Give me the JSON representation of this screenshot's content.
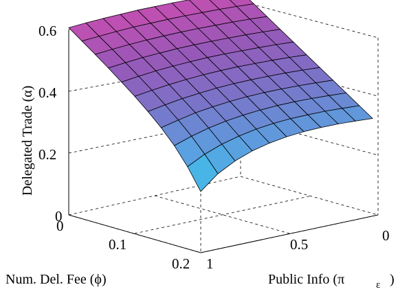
{
  "chart_data": {
    "type": "surface",
    "xlabel": "Num. Del. Fee (ϕ)",
    "ylabel": "Public Info (π",
    "ylabel_sub": "ε",
    "ylabel_close": ")",
    "zlabel": "Delegated Trade (α)",
    "x_ticks": [
      "0",
      "0.1",
      "0.2"
    ],
    "y_ticks": [
      "0",
      "0.5",
      "1"
    ],
    "z_ticks": [
      "0",
      "0.2",
      "0.4",
      "0.6"
    ],
    "xlim": [
      0,
      0.2
    ],
    "ylim": [
      0,
      1
    ],
    "zlim": [
      0,
      0.6
    ],
    "grid": true,
    "colormap": [
      "#38c8ec",
      "#5ba0e0",
      "#7a74c8",
      "#9858b8",
      "#c84eb0"
    ],
    "x": [
      0,
      0.02,
      0.04,
      0.06,
      0.08,
      0.1,
      0.12,
      0.14,
      0.16,
      0.18,
      0.2
    ],
    "y": [
      0,
      0.1,
      0.2,
      0.3,
      0.4,
      0.5,
      0.6,
      0.7,
      0.8,
      0.9,
      1.0
    ],
    "z_description_rows_x": "z[i][j] for x[i], y[j]",
    "z": [
      [
        0.6,
        0.604,
        0.607,
        0.609,
        0.611,
        0.612,
        0.613,
        0.612,
        0.611,
        0.609,
        0.606
      ],
      [
        0.571,
        0.575,
        0.578,
        0.58,
        0.582,
        0.583,
        0.583,
        0.583,
        0.581,
        0.578,
        0.575
      ],
      [
        0.542,
        0.546,
        0.549,
        0.551,
        0.553,
        0.554,
        0.554,
        0.553,
        0.551,
        0.548,
        0.544
      ],
      [
        0.513,
        0.517,
        0.52,
        0.522,
        0.524,
        0.525,
        0.525,
        0.523,
        0.521,
        0.517,
        0.512
      ],
      [
        0.484,
        0.488,
        0.491,
        0.493,
        0.495,
        0.496,
        0.495,
        0.493,
        0.49,
        0.485,
        0.479
      ],
      [
        0.455,
        0.459,
        0.462,
        0.464,
        0.466,
        0.466,
        0.465,
        0.462,
        0.458,
        0.452,
        0.445
      ],
      [
        0.426,
        0.43,
        0.433,
        0.435,
        0.436,
        0.436,
        0.434,
        0.43,
        0.425,
        0.417,
        0.408
      ],
      [
        0.397,
        0.401,
        0.404,
        0.406,
        0.407,
        0.406,
        0.403,
        0.398,
        0.391,
        0.38,
        0.368
      ],
      [
        0.368,
        0.372,
        0.375,
        0.377,
        0.377,
        0.375,
        0.371,
        0.364,
        0.354,
        0.34,
        0.322
      ],
      [
        0.339,
        0.343,
        0.346,
        0.347,
        0.347,
        0.344,
        0.338,
        0.328,
        0.314,
        0.294,
        0.266
      ],
      [
        0.31,
        0.314,
        0.317,
        0.318,
        0.317,
        0.313,
        0.305,
        0.292,
        0.272,
        0.243,
        0.198
      ]
    ]
  }
}
